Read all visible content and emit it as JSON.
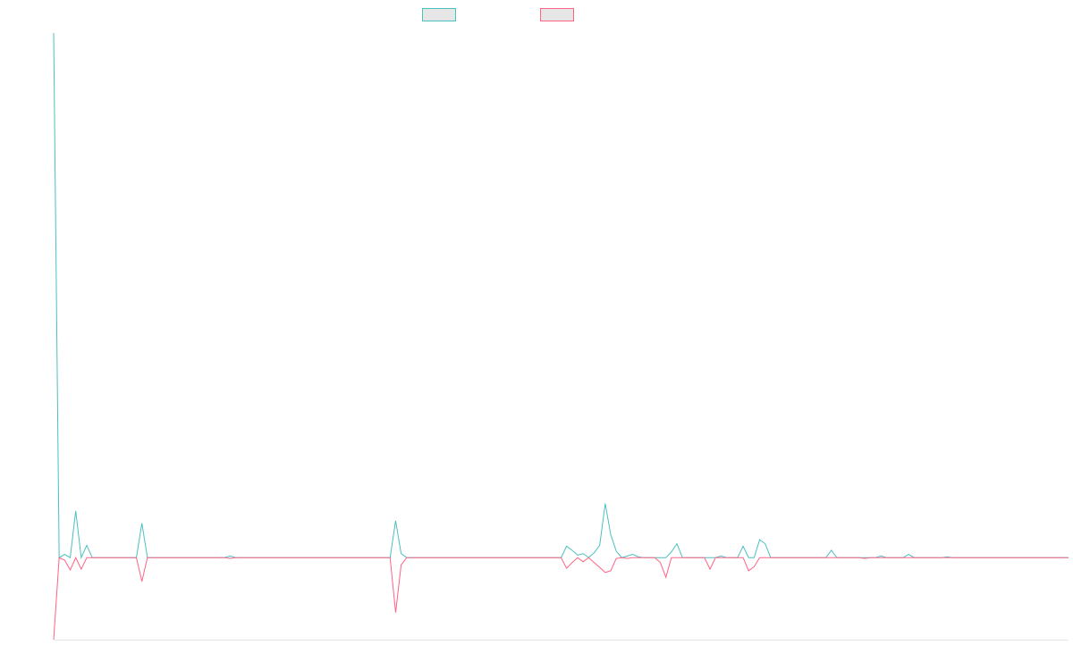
{
  "chart_data": {
    "type": "line",
    "title": "",
    "xlabel": "",
    "ylabel": "",
    "grid": false,
    "legend_position": "top-center",
    "ylim": [
      -100,
      640
    ],
    "series": [
      {
        "color": "#4bc0c0",
        "values": [
          640,
          0,
          4,
          0,
          57,
          0,
          15,
          0,
          0,
          0,
          0,
          0,
          0,
          0,
          0,
          0,
          42,
          0,
          0,
          0,
          0,
          0,
          0,
          0,
          0,
          0,
          0,
          0,
          0,
          0,
          0,
          0,
          2,
          0,
          0,
          0,
          0,
          0,
          0,
          0,
          0,
          0,
          0,
          0,
          0,
          0,
          0,
          0,
          0,
          0,
          0,
          0,
          0,
          0,
          0,
          0,
          0,
          0,
          0,
          0,
          0,
          0,
          45,
          5,
          0,
          0,
          0,
          0,
          0,
          0,
          0,
          0,
          0,
          0,
          0,
          0,
          0,
          0,
          0,
          0,
          0,
          0,
          0,
          0,
          0,
          0,
          0,
          0,
          0,
          0,
          0,
          0,
          0,
          14,
          9,
          3,
          5,
          0,
          6,
          15,
          66,
          28,
          8,
          0,
          2,
          4,
          1,
          0,
          0,
          0,
          0,
          0,
          7,
          17,
          0,
          0,
          0,
          0,
          0,
          0,
          0,
          2,
          0,
          0,
          0,
          14,
          0,
          0,
          22,
          17,
          0,
          0,
          0,
          0,
          0,
          0,
          0,
          0,
          0,
          0,
          0,
          9,
          0,
          0,
          0,
          0,
          0,
          0,
          0,
          0,
          2,
          0,
          0,
          0,
          0,
          4,
          0,
          0,
          0,
          0,
          0,
          0,
          1,
          0,
          0,
          0,
          0,
          0,
          0,
          0,
          0,
          0,
          0,
          0,
          0,
          0,
          0,
          0,
          0,
          0,
          0,
          0,
          0,
          0,
          0
        ]
      },
      {
        "color": "#ff6384",
        "values": [
          -100,
          0,
          -3,
          -15,
          0,
          -14,
          0,
          0,
          0,
          0,
          0,
          0,
          0,
          0,
          0,
          0,
          -29,
          0,
          0,
          0,
          0,
          0,
          0,
          0,
          0,
          0,
          0,
          0,
          0,
          0,
          0,
          0,
          -1,
          0,
          0,
          0,
          0,
          0,
          0,
          0,
          0,
          0,
          0,
          0,
          0,
          0,
          0,
          0,
          0,
          0,
          0,
          0,
          0,
          0,
          0,
          0,
          0,
          0,
          0,
          0,
          0,
          0,
          -67,
          -9,
          0,
          0,
          0,
          0,
          0,
          0,
          0,
          0,
          0,
          0,
          0,
          0,
          0,
          0,
          0,
          0,
          0,
          0,
          0,
          0,
          0,
          0,
          0,
          0,
          0,
          0,
          0,
          0,
          0,
          -13,
          -6,
          0,
          -5,
          0,
          -6,
          -12,
          -18,
          -16,
          -1,
          0,
          -1,
          0,
          0,
          0,
          0,
          0,
          -6,
          -24,
          0,
          0,
          0,
          0,
          0,
          0,
          0,
          -14,
          0,
          0,
          0,
          0,
          0,
          0,
          -16,
          -11,
          0,
          0,
          0,
          0,
          0,
          0,
          0,
          0,
          0,
          0,
          0,
          0,
          0,
          0,
          0,
          0,
          0,
          0,
          0,
          -1,
          0,
          0,
          0,
          0,
          0,
          0,
          0,
          0,
          0,
          0,
          0,
          0,
          0,
          0,
          0,
          0,
          0,
          0,
          0,
          0,
          0,
          0,
          0,
          0,
          0,
          0,
          0,
          0,
          0,
          0,
          0,
          0,
          0,
          0,
          0,
          0,
          0
        ]
      }
    ]
  }
}
